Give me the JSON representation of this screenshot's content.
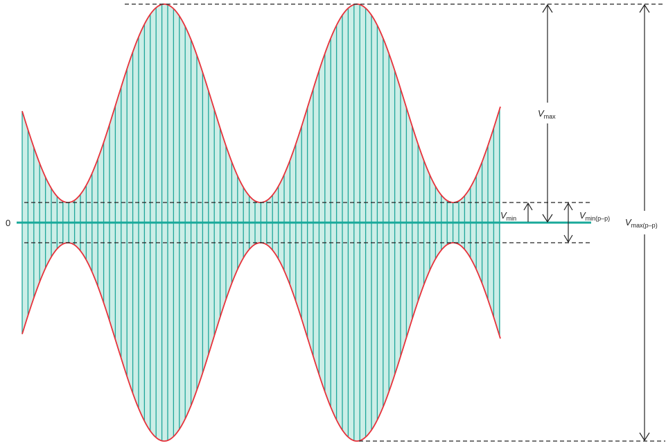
{
  "diagram": {
    "zero_label": "0",
    "vmax": {
      "main": "V",
      "sub": "max"
    },
    "vmin": {
      "main": "V",
      "sub": "min"
    },
    "vmin_pp": {
      "main": "V",
      "sub": "min(p–p)"
    },
    "vmax_pp": {
      "main": "V",
      "sub": "max(p–p)"
    }
  },
  "colors": {
    "envelope": "#e8313a",
    "fill": "#cceee7",
    "carrier": "#1fa69a",
    "zero_line": "#18a99a",
    "dashed": "#222222",
    "arrow": "#222222"
  }
}
